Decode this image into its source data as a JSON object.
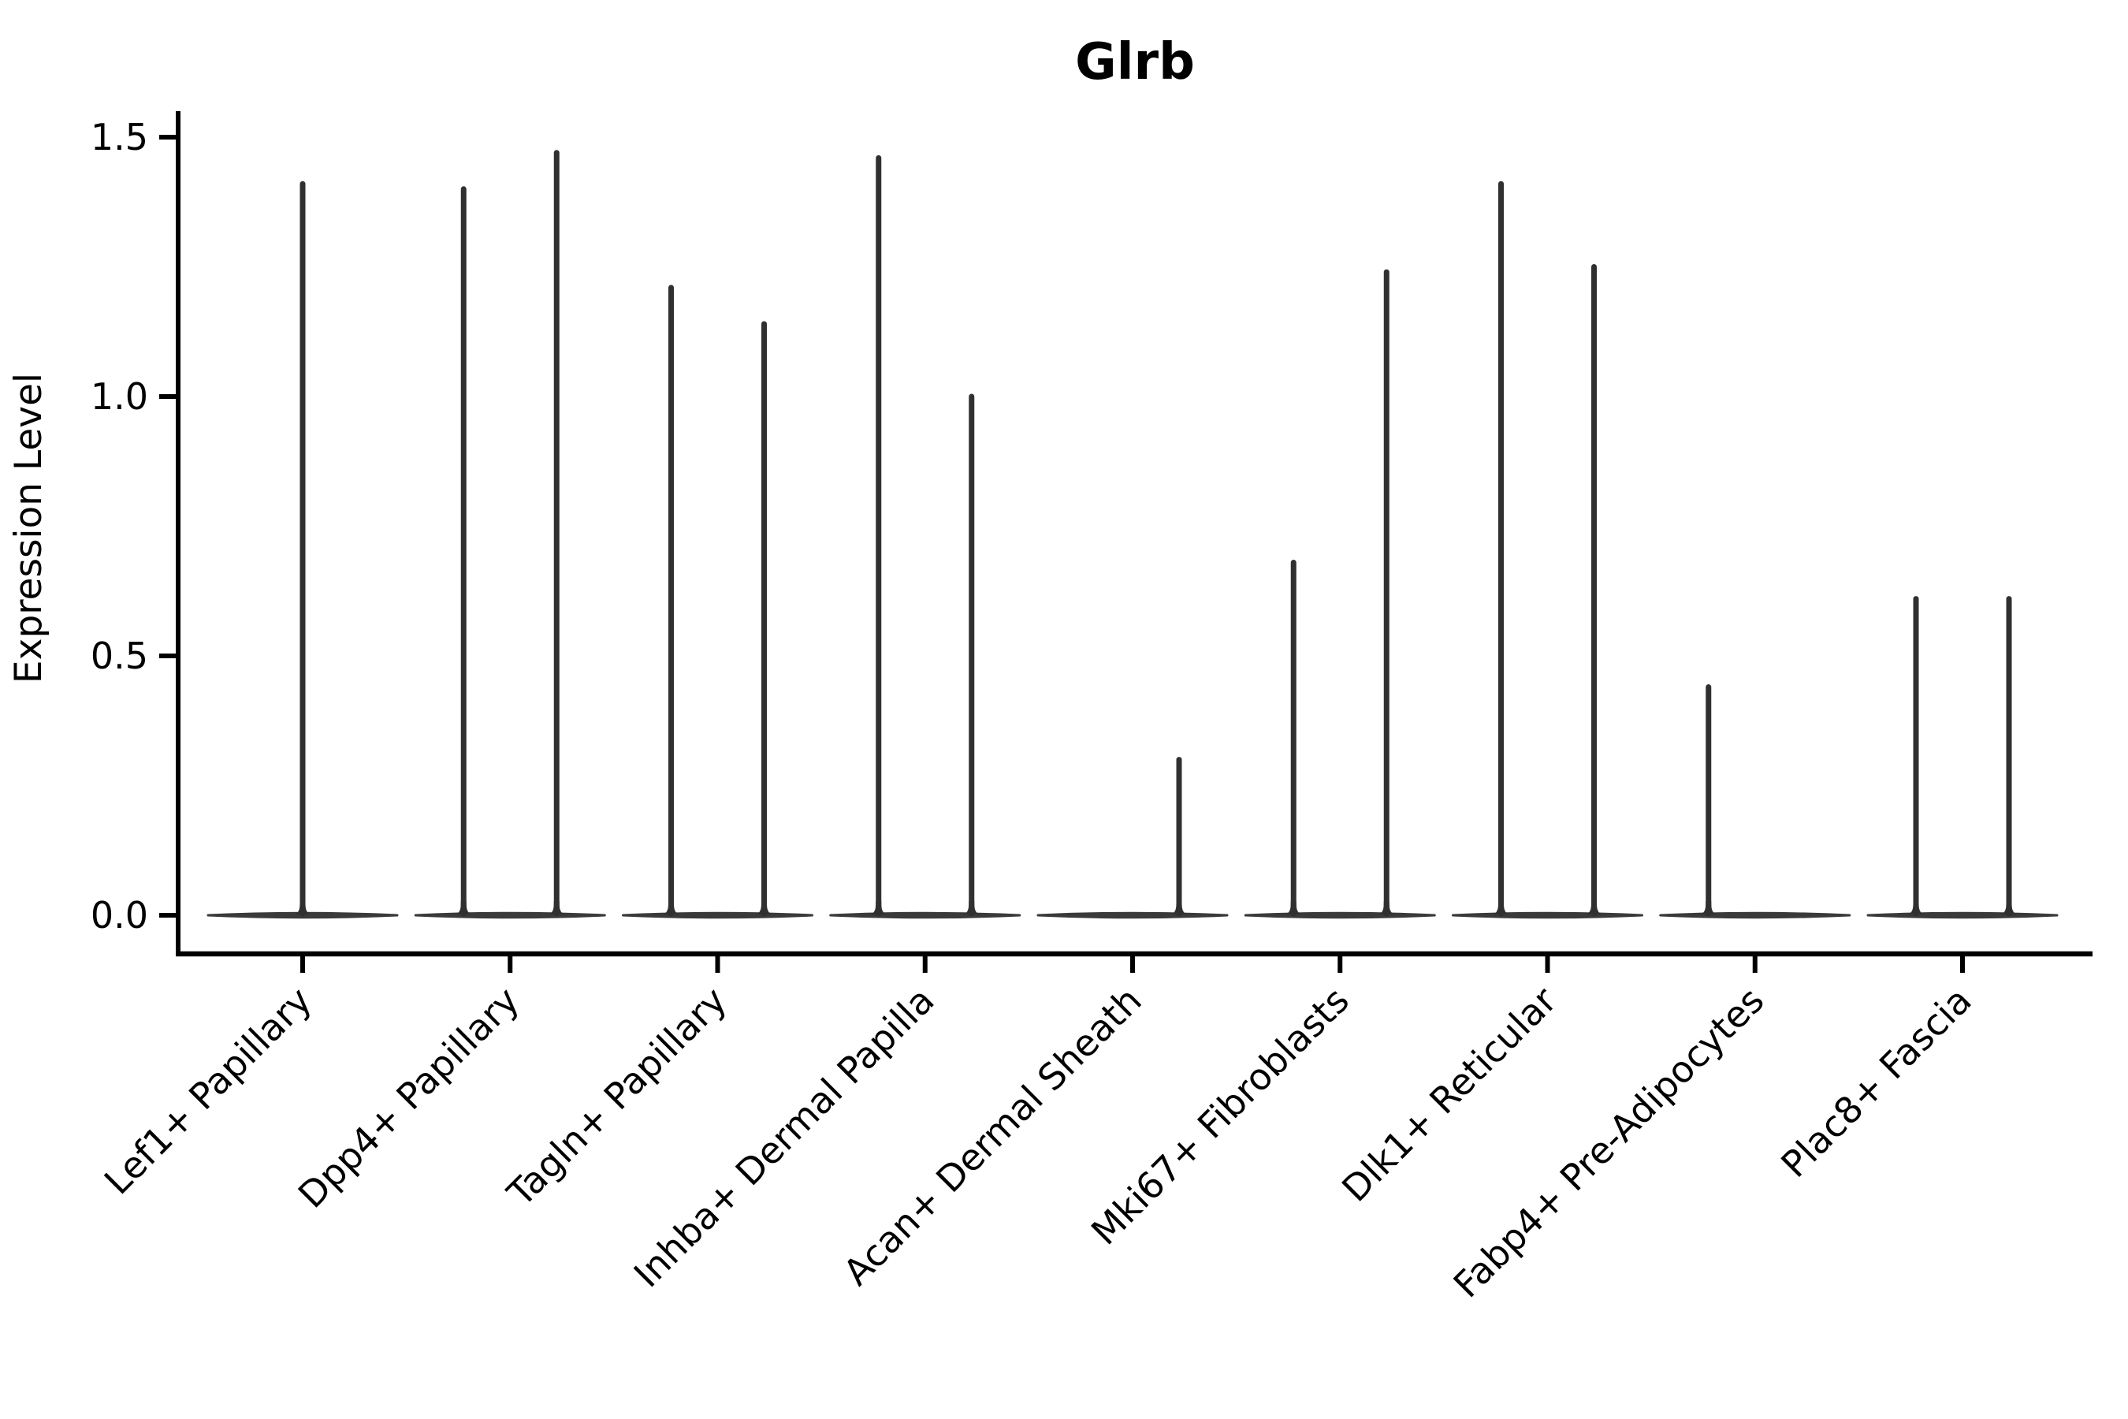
{
  "chart_data": {
    "type": "violin",
    "title": "Glrb",
    "ylabel": "Expression Level",
    "xlabel": "",
    "ytick_labels": [
      "0.0",
      "0.5",
      "1.0",
      "1.5"
    ],
    "ytick_values": [
      0.0,
      0.5,
      1.0,
      1.5
    ],
    "ylim": [
      -0.07,
      1.55
    ],
    "grid": false,
    "legend": "none",
    "categories": [
      "Lef1+ Papillary",
      "Dpp4+ Papillary",
      "Tagln+ Papillary",
      "Inhba+ Dermal Papilla",
      "Acan+ Dermal Sheath",
      "Mki67+ Fibroblasts",
      "Dlk1+ Reticular",
      "Fabp4+ Pre-Adipocytes",
      "Plac8+ Fascia"
    ],
    "violins": [
      {
        "category": "Lef1+ Papillary",
        "groups": [
          {
            "position": "center",
            "max_expression": 1.41
          }
        ]
      },
      {
        "category": "Dpp4+ Papillary",
        "groups": [
          {
            "position": "left",
            "max_expression": 1.4
          },
          {
            "position": "right",
            "max_expression": 1.47
          }
        ]
      },
      {
        "category": "Tagln+ Papillary",
        "groups": [
          {
            "position": "left",
            "max_expression": 1.21
          },
          {
            "position": "right",
            "max_expression": 1.14
          }
        ]
      },
      {
        "category": "Inhba+ Dermal Papilla",
        "groups": [
          {
            "position": "left",
            "max_expression": 1.46
          },
          {
            "position": "right",
            "max_expression": 1.0
          }
        ]
      },
      {
        "category": "Acan+ Dermal Sheath",
        "groups": [
          {
            "position": "right",
            "max_expression": 0.3
          }
        ]
      },
      {
        "category": "Mki67+ Fibroblasts",
        "groups": [
          {
            "position": "left",
            "max_expression": 0.68
          },
          {
            "position": "right",
            "max_expression": 1.24
          }
        ]
      },
      {
        "category": "Dlk1+ Reticular",
        "groups": [
          {
            "position": "left",
            "max_expression": 1.41
          },
          {
            "position": "right",
            "max_expression": 1.25
          }
        ]
      },
      {
        "category": "Fabp4+ Pre-Adipocytes",
        "groups": [
          {
            "position": "left",
            "max_expression": 0.44
          }
        ]
      },
      {
        "category": "Plac8+ Fascia",
        "groups": [
          {
            "position": "left",
            "max_expression": 0.61
          },
          {
            "position": "right",
            "max_expression": 0.61
          }
        ]
      }
    ],
    "colors": {
      "violin": "#303030",
      "violin_base": "#3a3a3a",
      "axis": "#000000",
      "text": "#000000",
      "background": "#ffffff"
    }
  }
}
